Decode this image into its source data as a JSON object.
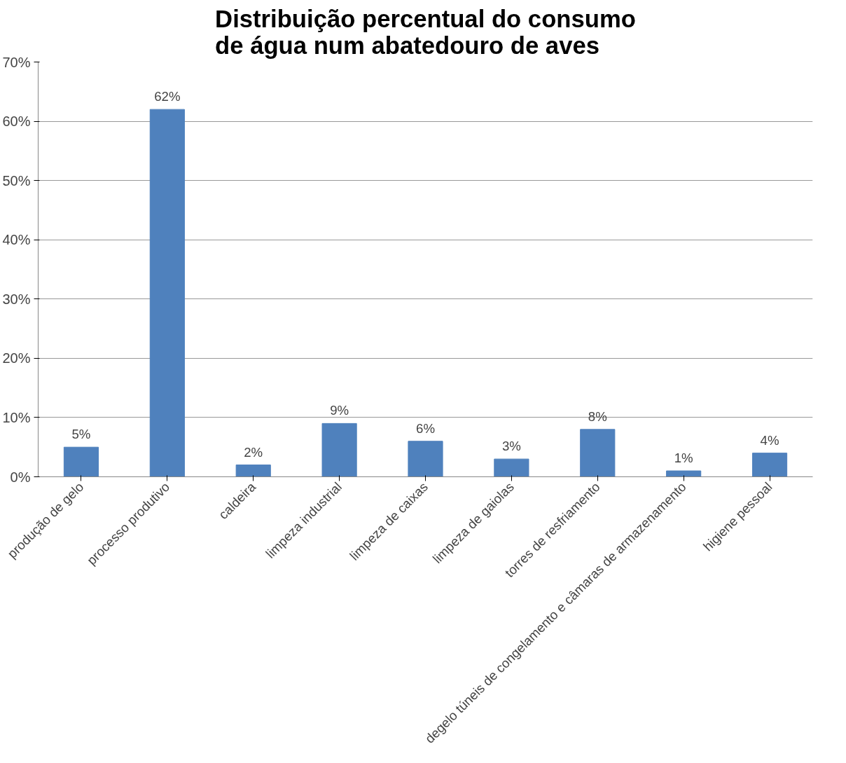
{
  "chart_data": {
    "type": "bar",
    "title": "Distribuição percentual do consumo de água num abatedouro de aves",
    "categories": [
      "produção de gelo",
      "processo produtivo",
      "caldeira",
      "limpeza industrial",
      "limpeza de caixas",
      "limpeza de gaiolas",
      "torres de resfriamento",
      "degelo túneis de congelamento e câmaras de armazenamento",
      "higiene pessoal"
    ],
    "values": [
      5,
      62,
      2,
      9,
      6,
      3,
      8,
      1,
      4
    ],
    "value_labels": [
      "5%",
      "62%",
      "2%",
      "9%",
      "6%",
      "3%",
      "8%",
      "1%",
      "4%"
    ],
    "color": "#4f81bd",
    "ylim": [
      0,
      70
    ],
    "yticks": [
      {
        "value": 0,
        "label": "0%"
      },
      {
        "value": 10,
        "label": "10%"
      },
      {
        "value": 20,
        "label": "20%"
      },
      {
        "value": 30,
        "label": "30%"
      },
      {
        "value": 40,
        "label": "40%"
      },
      {
        "value": 50,
        "label": "50%"
      },
      {
        "value": 60,
        "label": "60%"
      },
      {
        "value": 70,
        "label": "70%"
      }
    ],
    "grid": "y"
  }
}
